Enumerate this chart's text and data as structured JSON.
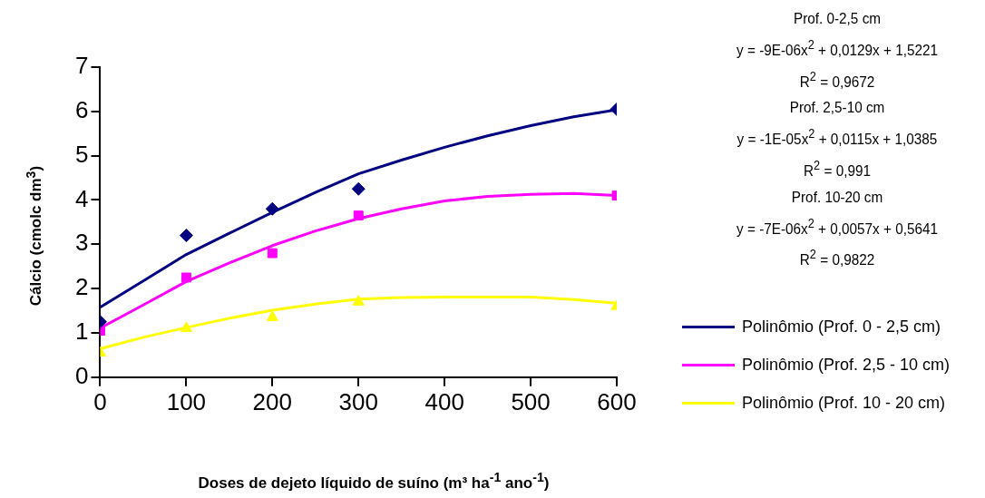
{
  "chart_data": {
    "type": "scatter",
    "xlabel": "Doses de dejeto líquido de suíno (m³ ha$^{-1}$ ano$^{-1}$)",
    "ylabel": "Cálcio (cmolc dm$^{3}$)",
    "xlim": [
      0,
      600
    ],
    "xticks": [
      0,
      100,
      200,
      300,
      400,
      500,
      600
    ],
    "ylim": [
      0,
      7
    ],
    "yticks": [
      0,
      1,
      2,
      3,
      4,
      5,
      6,
      7
    ],
    "grid": false,
    "legend": "right",
    "annotations": [
      "Prof. 0-2,5 cm",
      "y = -9E-06x$^{2}$ + 0,0129x + 1,5221",
      "R$^{2}$ = 0,9672",
      "Prof. 2,5-10 cm",
      "y = -1E-05x$^{2}$ + 0,0115x + 1,0385",
      "R$^{2}$ = 0,991",
      "Prof. 10-20 cm",
      "y = -7E-06x$^{2}$ + 0,0057x + 0,5641",
      "R$^{2}$ = 0,9822"
    ],
    "series": [
      {
        "type": "scatter",
        "color": "#000080",
        "marker": "diamond",
        "x": [
          0,
          100,
          200,
          300,
          600
        ],
        "values": [
          1.25,
          3.2,
          3.8,
          4.25,
          6.05
        ]
      },
      {
        "type": "scatter",
        "color": "#ff00ff",
        "marker": "square",
        "x": [
          0,
          100,
          200,
          300,
          600
        ],
        "values": [
          1.05,
          2.25,
          2.8,
          3.65,
          4.1
        ]
      },
      {
        "type": "scatter",
        "color": "#ffff00",
        "marker": "triangle",
        "x": [
          0,
          100,
          200,
          300,
          600
        ],
        "values": [
          0.55,
          1.1,
          1.35,
          1.7,
          1.6
        ]
      },
      {
        "type": "line",
        "name": "Polinômio (Prof. 0 - 2,5 cm)",
        "color": "#000080",
        "marker": "none",
        "x": [
          0,
          50,
          100,
          150,
          200,
          250,
          300,
          350,
          400,
          450,
          500,
          550,
          600
        ],
        "values": [
          1.58,
          2.17,
          2.77,
          3.25,
          3.72,
          4.17,
          4.59,
          4.9,
          5.19,
          5.45,
          5.68,
          5.88,
          6.04
        ]
      },
      {
        "type": "line",
        "name": "Polinômio (Prof. 2,5 - 10 cm)",
        "color": "#ff00ff",
        "marker": "none",
        "x": [
          0,
          50,
          100,
          150,
          200,
          250,
          300,
          350,
          400,
          450,
          500,
          550,
          600
        ],
        "values": [
          1.11,
          1.63,
          2.16,
          2.58,
          2.97,
          3.3,
          3.58,
          3.8,
          3.98,
          4.08,
          4.13,
          4.15,
          4.1
        ]
      },
      {
        "type": "line",
        "name": "Polinômio (Prof. 10 - 20 cm)",
        "color": "#ffff00",
        "marker": "none",
        "x": [
          0,
          50,
          100,
          150,
          200,
          250,
          300,
          350,
          400,
          450,
          500,
          550,
          600
        ],
        "values": [
          0.64,
          0.9,
          1.12,
          1.33,
          1.51,
          1.65,
          1.76,
          1.8,
          1.81,
          1.81,
          1.81,
          1.75,
          1.67
        ]
      }
    ]
  }
}
